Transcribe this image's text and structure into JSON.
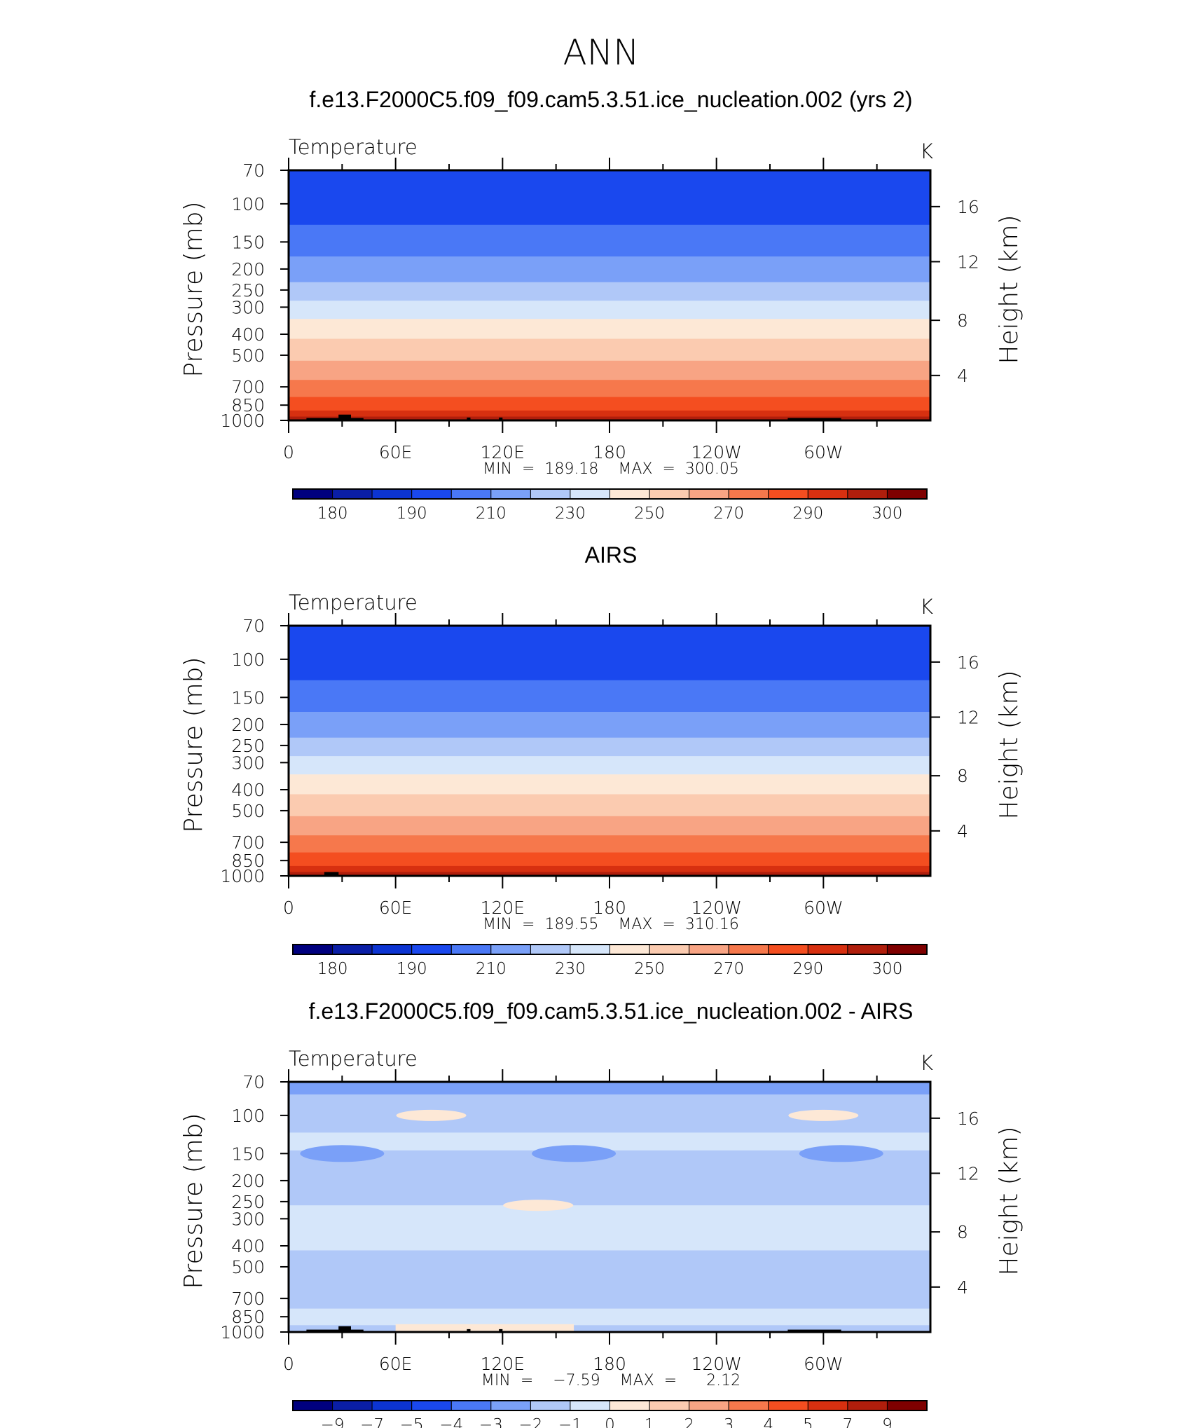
{
  "figure_title": "ANN",
  "chart_data": [
    {
      "type": "contour",
      "title": "f.e13.F2000C5.f09_f09.cam5.3.51.ice_nucleation.002 (yrs 2)",
      "variable": "Temperature",
      "units": "K",
      "ylabel": "Pressure (mb)",
      "y2label": "Height (km)",
      "x_ticks": [
        "0",
        "60E",
        "120E",
        "180",
        "120W",
        "60W"
      ],
      "x_range": [
        0,
        360
      ],
      "y_ticks": [
        "70",
        "100",
        "150",
        "200",
        "250",
        "300",
        "400",
        "500",
        "700",
        "850",
        "1000"
      ],
      "y2_ticks": [
        "16",
        "12",
        "8",
        "4"
      ],
      "stats": "MIN  =  189.18    MAX  =  300.05",
      "min": 189.18,
      "max": 300.05,
      "colorbar_labels": [
        "180",
        "190",
        "210",
        "230",
        "250",
        "270",
        "290",
        "300"
      ],
      "bands": [
        {
          "p": 70,
          "t": 196
        },
        {
          "p": 125,
          "t": 200
        },
        {
          "p": 175,
          "t": 212
        },
        {
          "p": 230,
          "t": 222
        },
        {
          "p": 280,
          "t": 232
        },
        {
          "p": 340,
          "t": 244
        },
        {
          "p": 420,
          "t": 254
        },
        {
          "p": 530,
          "t": 264
        },
        {
          "p": 650,
          "t": 272
        },
        {
          "p": 780,
          "t": 282
        },
        {
          "p": 900,
          "t": 290
        },
        {
          "p": 960,
          "t": 296
        }
      ]
    },
    {
      "type": "contour",
      "title": "AIRS",
      "variable": "Temperature",
      "units": "K",
      "ylabel": "Pressure (mb)",
      "y2label": "Height (km)",
      "x_ticks": [
        "0",
        "60E",
        "120E",
        "180",
        "120W",
        "60W"
      ],
      "x_range": [
        0,
        360
      ],
      "y_ticks": [
        "70",
        "100",
        "150",
        "200",
        "250",
        "300",
        "400",
        "500",
        "700",
        "850",
        "1000"
      ],
      "y2_ticks": [
        "16",
        "12",
        "8",
        "4"
      ],
      "stats": "MIN  =  189.55    MAX  =  310.16",
      "min": 189.55,
      "max": 310.16,
      "colorbar_labels": [
        "180",
        "190",
        "210",
        "230",
        "250",
        "270",
        "290",
        "300"
      ],
      "bands": [
        {
          "p": 70,
          "t": 196
        },
        {
          "p": 125,
          "t": 200
        },
        {
          "p": 175,
          "t": 212
        },
        {
          "p": 230,
          "t": 222
        },
        {
          "p": 280,
          "t": 232
        },
        {
          "p": 340,
          "t": 244
        },
        {
          "p": 420,
          "t": 254
        },
        {
          "p": 530,
          "t": 264
        },
        {
          "p": 650,
          "t": 272
        },
        {
          "p": 780,
          "t": 282
        },
        {
          "p": 900,
          "t": 290
        },
        {
          "p": 960,
          "t": 296
        }
      ]
    },
    {
      "type": "contour",
      "title": "f.e13.F2000C5.f09_f09.cam5.3.51.ice_nucleation.002 - AIRS",
      "variable": "Temperature",
      "units": "K",
      "ylabel": "Pressure (mb)",
      "y2label": "Height (km)",
      "x_ticks": [
        "0",
        "60E",
        "120E",
        "180",
        "120W",
        "60W"
      ],
      "x_range": [
        0,
        360
      ],
      "y_ticks": [
        "70",
        "100",
        "150",
        "200",
        "250",
        "300",
        "400",
        "500",
        "700",
        "850",
        "1000"
      ],
      "y2_ticks": [
        "16",
        "12",
        "8",
        "4"
      ],
      "stats": "MIN  =    −7.59    MAX  =      2.12",
      "min": -7.59,
      "max": 2.12,
      "colorbar_labels": [
        "−9",
        "−7",
        "−5",
        "−4",
        "−3",
        "−2",
        "−1",
        "0",
        "1",
        "2",
        "3",
        "4",
        "5",
        "7",
        "9"
      ],
      "bands": [
        {
          "p": 70,
          "t": -2.5
        },
        {
          "p": 80,
          "t": -1.5
        },
        {
          "p": 120,
          "t": -0.5
        },
        {
          "p": 145,
          "t": -1.5
        },
        {
          "p": 180,
          "t": -1.5
        },
        {
          "p": 260,
          "t": -0.5
        },
        {
          "p": 420,
          "t": -1.5
        },
        {
          "p": 560,
          "t": -1.5
        },
        {
          "p": 780,
          "t": -0.5
        },
        {
          "p": 930,
          "t": -1.5
        }
      ]
    }
  ],
  "colormap": [
    "#00007f",
    "#0a1ea6",
    "#0c34d2",
    "#1a48ee",
    "#4a78f6",
    "#7aa0f8",
    "#b0c8f8",
    "#d6e6fa",
    "#fde8d6",
    "#fbcbb0",
    "#f8a484",
    "#f6784c",
    "#f44e20",
    "#d73010",
    "#b01e0c",
    "#7f0000"
  ]
}
